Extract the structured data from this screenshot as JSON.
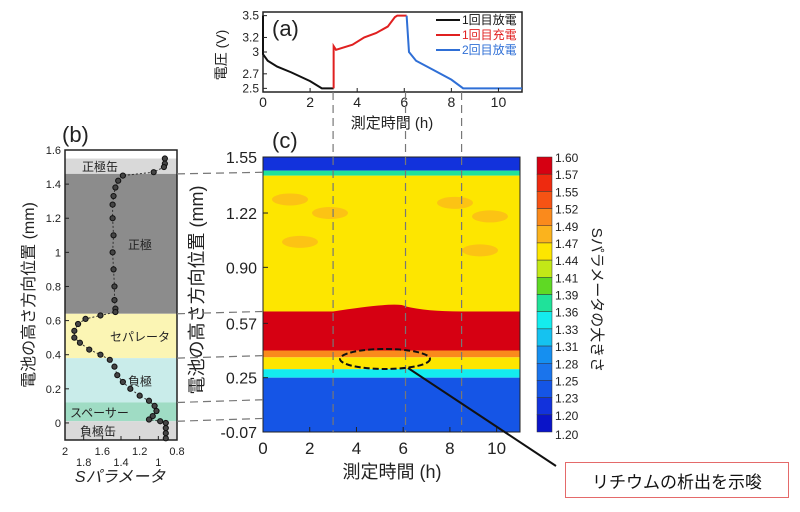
{
  "chart_data": [
    {
      "id": "a",
      "type": "line",
      "panel_label": "(a)",
      "xlabel": "測定時間 (h)",
      "ylabel": "電圧 (V)",
      "xlim": [
        0,
        11
      ],
      "ylim": [
        2.45,
        3.55
      ],
      "xticks": [
        0,
        2,
        4,
        6,
        8,
        10
      ],
      "yticks": [
        2.5,
        2.7,
        3,
        3.2,
        3.5
      ],
      "ytick_labels": [
        "2.5",
        "2.7",
        "3",
        "3.2",
        "3.5"
      ],
      "legend_position": "top-right",
      "series": [
        {
          "name": "1回目放電",
          "color": "#111111",
          "points": [
            [
              0,
              3.5
            ],
            [
              0,
              2.97
            ],
            [
              0.2,
              2.88
            ],
            [
              0.6,
              2.8
            ],
            [
              1.2,
              2.72
            ],
            [
              2,
              2.6
            ],
            [
              2.5,
              2.5
            ],
            [
              3,
              2.5
            ]
          ]
        },
        {
          "name": "1回目充電",
          "color": "#e02020",
          "points": [
            [
              3,
              2.5
            ],
            [
              3,
              3.08
            ],
            [
              3.1,
              3.03
            ],
            [
              3.8,
              3.1
            ],
            [
              4.3,
              3.2
            ],
            [
              4.8,
              3.26
            ],
            [
              5.3,
              3.35
            ],
            [
              5.6,
              3.48
            ],
            [
              5.7,
              3.5
            ],
            [
              6.1,
              3.5
            ]
          ]
        },
        {
          "name": "2回目放電",
          "color": "#2f6fd6",
          "points": [
            [
              6.1,
              3.5
            ],
            [
              6.2,
              3.0
            ],
            [
              6.5,
              2.88
            ],
            [
              7.2,
              2.76
            ],
            [
              8,
              2.62
            ],
            [
              8.5,
              2.5
            ],
            [
              11,
              2.5
            ]
          ]
        }
      ]
    },
    {
      "id": "b",
      "type": "scatter",
      "panel_label": "(b)",
      "xlabel": "Sパラメータ",
      "ylabel": "電池の高さ方向位置 (mm)",
      "xlim": [
        2,
        0.8
      ],
      "ylim": [
        -0.1,
        1.6
      ],
      "xticks": [
        2,
        1.8,
        1.6,
        1.4,
        1.2,
        1,
        0.8
      ],
      "xtick_labels": [
        "2",
        "1.8",
        "1.6",
        "1.4",
        "1.2",
        "1",
        "0.8"
      ],
      "yticks": [
        0,
        0.2,
        0.4,
        0.6,
        0.8,
        1,
        1.2,
        1.4,
        1.6
      ],
      "ytick_labels": [
        "0",
        "0.2",
        "0.4",
        "0.6",
        "0.8",
        "1",
        "1.2",
        "1.4",
        "1.6"
      ],
      "regions": [
        {
          "label": "正極缶",
          "from": 1.46,
          "to": 1.55,
          "color": "#d9d9d9"
        },
        {
          "label": "正極",
          "from": 0.64,
          "to": 1.46,
          "color": "#8c8c8c"
        },
        {
          "label": "セパレータ",
          "from": 0.38,
          "to": 0.64,
          "color": "#fbf5b4"
        },
        {
          "label": "負極",
          "from": 0.12,
          "to": 0.38,
          "color": "#c9ecea"
        },
        {
          "label": "スペーサー",
          "from": 0.01,
          "to": 0.12,
          "color": "#9fdcc4"
        },
        {
          "label": "負極缶",
          "from": -0.1,
          "to": 0.01,
          "color": "#d9d9d9"
        }
      ],
      "points": [
        [
          0.93,
          1.55
        ],
        [
          0.93,
          1.52
        ],
        [
          0.94,
          1.5
        ],
        [
          1.05,
          1.47
        ],
        [
          1.38,
          1.45
        ],
        [
          1.43,
          1.42
        ],
        [
          1.46,
          1.38
        ],
        [
          1.48,
          1.33
        ],
        [
          1.49,
          1.28
        ],
        [
          1.49,
          1.2
        ],
        [
          1.48,
          1.1
        ],
        [
          1.49,
          1.0
        ],
        [
          1.48,
          0.9
        ],
        [
          1.47,
          0.8
        ],
        [
          1.47,
          0.72
        ],
        [
          1.46,
          0.67
        ],
        [
          1.46,
          0.65
        ],
        [
          1.62,
          0.63
        ],
        [
          1.78,
          0.61
        ],
        [
          1.86,
          0.58
        ],
        [
          1.9,
          0.54
        ],
        [
          1.9,
          0.5
        ],
        [
          1.84,
          0.47
        ],
        [
          1.74,
          0.43
        ],
        [
          1.62,
          0.4
        ],
        [
          1.52,
          0.37
        ],
        [
          1.47,
          0.33
        ],
        [
          1.44,
          0.28
        ],
        [
          1.38,
          0.24
        ],
        [
          1.3,
          0.2
        ],
        [
          1.2,
          0.16
        ],
        [
          1.1,
          0.13
        ],
        [
          1.04,
          0.1
        ],
        [
          1.02,
          0.07
        ],
        [
          1.06,
          0.04
        ],
        [
          1.1,
          0.02
        ],
        [
          0.98,
          0.01
        ],
        [
          0.92,
          0.0
        ],
        [
          0.92,
          -0.03
        ],
        [
          0.92,
          -0.06
        ],
        [
          0.92,
          -0.09
        ]
      ]
    },
    {
      "id": "c",
      "type": "heatmap",
      "panel_label": "(c)",
      "xlabel": "測定時間 (h)",
      "ylabel": "電池の高さ方向位置 (mm)",
      "xlim": [
        0,
        11
      ],
      "ylim": [
        -0.07,
        1.55
      ],
      "xticks": [
        0,
        2,
        4,
        6,
        8,
        10
      ],
      "yticks": [
        -0.07,
        0.25,
        0.57,
        0.9,
        1.22,
        1.55
      ],
      "ytick_labels": [
        "-0.07",
        "0.25",
        "0.57",
        "0.90",
        "1.22",
        "1.55"
      ],
      "colorbar": {
        "title": "Sパラメータの大きさ",
        "levels": [
          "1.60",
          "1.57",
          "1.55",
          "1.52",
          "1.49",
          "1.47",
          "1.44",
          "1.41",
          "1.39",
          "1.36",
          "1.33",
          "1.31",
          "1.28",
          "1.25",
          "1.23",
          "1.20"
        ],
        "bottom_label": "1.20",
        "colors": [
          "#d60012",
          "#ee2a0f",
          "#f65314",
          "#fa8a1c",
          "#fbb31d",
          "#fde600",
          "#c3e817",
          "#5fd924",
          "#1fe29a",
          "#14ecee",
          "#15c2f0",
          "#158ff0",
          "#1a74ec",
          "#1555e6",
          "#1232dc",
          "#0a14c8"
        ]
      },
      "bands": [
        {
          "from": 1.47,
          "to": 1.55,
          "value": 1.22
        },
        {
          "from": 1.44,
          "to": 1.47,
          "value": 1.38
        },
        {
          "from": 0.64,
          "to": 1.44,
          "value": 1.45
        },
        {
          "from": 0.41,
          "to": 0.64,
          "value": 1.59
        },
        {
          "from": 0.37,
          "to": 0.41,
          "value": 1.51
        },
        {
          "from": 0.3,
          "to": 0.37,
          "value": 1.46
        },
        {
          "from": 0.25,
          "to": 0.3,
          "value": 1.34
        },
        {
          "from": -0.07,
          "to": 0.25,
          "value": 1.23
        }
      ],
      "annotation": "リチウムの析出を示唆"
    }
  ],
  "guides": {
    "times_h": [
      3,
      6.1,
      8.5
    ],
    "depths_mm": [
      1.46,
      0.64,
      0.38,
      0.12,
      0.01
    ]
  }
}
